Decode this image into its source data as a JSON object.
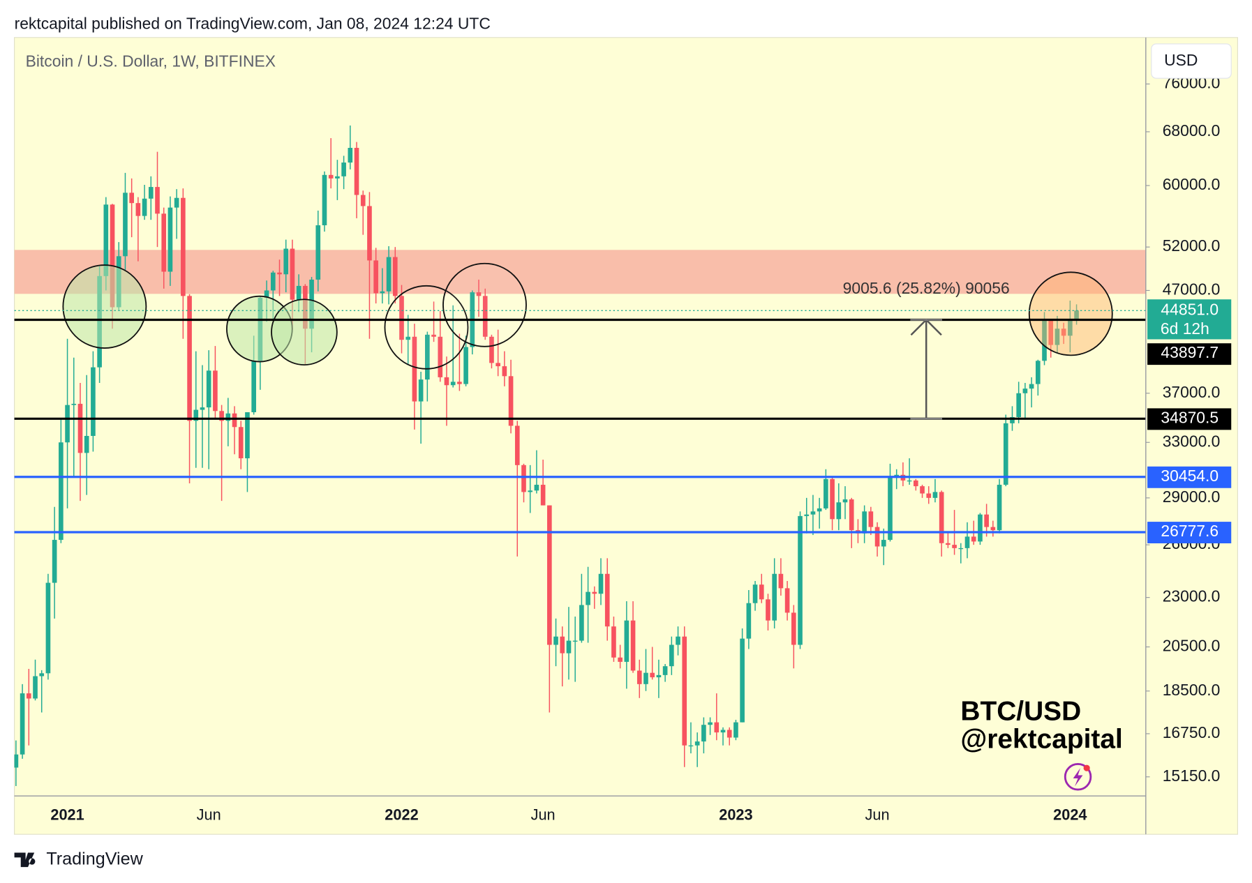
{
  "header": "rektcapital published on TradingView.com, Jan 08, 2024 12:24 UTC",
  "footer": "TradingView",
  "chart_data": {
    "type": "candlestick",
    "title": "Bitcoin / U.S. Dollar, 1W, BITFINEX",
    "currency": "USD",
    "watermark": [
      "BTC/USD",
      "@rektcapital"
    ],
    "log_scale": true,
    "up_color": "#22ab94",
    "down_color": "#f7525f",
    "categories": [
      null,
      null,
      null,
      null,
      null,
      null,
      null,
      null,
      "2021",
      null,
      null,
      null,
      null,
      null,
      null,
      null,
      null,
      null,
      null,
      null,
      null,
      null,
      null,
      null,
      null,
      null,
      null,
      null,
      null,
      null,
      "Jun",
      null,
      null,
      null,
      null,
      null,
      null,
      null,
      null,
      null,
      null,
      null,
      null,
      null,
      null,
      null,
      null,
      null,
      null,
      null,
      null,
      null,
      null,
      null,
      null,
      null,
      null,
      null,
      null,
      null,
      "2022",
      null,
      null,
      null,
      null,
      null,
      null,
      null,
      null,
      null,
      null,
      null,
      null,
      null,
      null,
      null,
      null,
      null,
      null,
      null,
      null,
      null,
      "Jun",
      null,
      null,
      null,
      null,
      null,
      null,
      null,
      null,
      null,
      null,
      null,
      null,
      null,
      null,
      null,
      null,
      null,
      null,
      null,
      null,
      null,
      null,
      null,
      null,
      null,
      null,
      null,
      null,
      null,
      "2023",
      null,
      null,
      null,
      null,
      null,
      null,
      null,
      null,
      null,
      null,
      null,
      null,
      null,
      null,
      null,
      null,
      null,
      null,
      null,
      null,
      null,
      "Jun",
      null,
      null,
      null,
      null,
      null,
      null,
      null,
      null,
      null,
      null,
      null,
      null,
      null,
      null,
      null,
      null,
      null,
      null,
      null,
      null,
      null,
      null,
      null,
      null,
      null,
      null,
      null,
      null,
      null,
      "2024",
      null
    ],
    "open": [
      15480,
      15960,
      18400,
      18180,
      19150,
      19280,
      23800,
      26300,
      33000,
      36000,
      36100,
      32200,
      33500,
      39300,
      48600,
      57400,
      45200,
      50900,
      59000,
      57600,
      55900,
      58200,
      59800,
      56200,
      49100,
      57000,
      58300,
      46400,
      34700,
      35600,
      35800,
      39000,
      35500,
      34700,
      35300,
      34200,
      31800,
      35400,
      39900,
      46200,
      47000,
      49000,
      48800,
      51800,
      46000,
      47500,
      43000,
      48200,
      54700,
      61500,
      61000,
      61300,
      63300,
      65500,
      58700,
      57200,
      50400,
      46700,
      46900,
      50800,
      46400,
      41900,
      42200,
      36300,
      38200,
      42400,
      42200,
      38400,
      37700,
      38000,
      37800,
      41200,
      46800,
      46400,
      42200,
      39700,
      39400,
      38500,
      34300,
      31300,
      29400,
      29500,
      29900,
      28500,
      20600,
      21000,
      20200,
      20800,
      20800,
      22600,
      23300,
      23200,
      24300,
      21500,
      20000,
      19800,
      21800,
      19400,
      18800,
      19300,
      19100,
      19200,
      19600,
      20600,
      21000,
      16300,
      16300,
      16450,
      17100,
      17200,
      16800,
      16900,
      16600,
      17200,
      20900,
      22700,
      23700,
      22900,
      21800,
      24300,
      23500,
      22200,
      20600,
      27800,
      27900,
      28100,
      28300,
      30300,
      27600,
      28700,
      28900,
      26900,
      26700,
      28100,
      27100,
      25900,
      26300,
      30500,
      30600,
      30200,
      30200,
      29800,
      29300,
      29000,
      29400,
      26100,
      26000,
      25800,
      25800,
      26500,
      26200,
      27900,
      27100,
      26900,
      29900,
      34500,
      35000,
      37000,
      37400,
      37800,
      39900,
      43800,
      41400,
      43000,
      42300,
      43897.7
    ],
    "high": [
      16490,
      18800,
      19480,
      19900,
      19420,
      24300,
      28400,
      34800,
      42000,
      40200,
      37900,
      38600,
      40800,
      49700,
      58400,
      57500,
      52600,
      61800,
      61000,
      58400,
      60100,
      61300,
      64900,
      57000,
      58500,
      59500,
      59600,
      46600,
      40800,
      39500,
      40900,
      41300,
      36000,
      36600,
      35900,
      34700,
      35400,
      42300,
      46400,
      48100,
      49200,
      50500,
      52900,
      52900,
      48800,
      47700,
      48500,
      56600,
      62000,
      67000,
      63700,
      64300,
      69000,
      66400,
      59300,
      59100,
      51900,
      49500,
      52100,
      52000,
      47600,
      44400,
      43500,
      38900,
      42700,
      45800,
      44800,
      40300,
      45400,
      42500,
      42300,
      47000,
      48200,
      47200,
      42400,
      42900,
      40800,
      40000,
      34700,
      31400,
      31300,
      32400,
      31700,
      28500,
      21900,
      21500,
      22500,
      22000,
      24300,
      24700,
      23600,
      25200,
      25200,
      22000,
      20600,
      22800,
      22800,
      19900,
      20400,
      20500,
      19900,
      19700,
      21000,
      21500,
      21500,
      17200,
      16800,
      17400,
      17400,
      18400,
      17000,
      17000,
      17300,
      21400,
      23400,
      23900,
      24300,
      23200,
      25200,
      25200,
      23900,
      22600,
      28100,
      29000,
      29200,
      29000,
      31000,
      30500,
      30000,
      29800,
      29000,
      27600,
      28500,
      28400,
      27400,
      27000,
      31400,
      31000,
      31500,
      31800,
      30300,
      29900,
      29800,
      30300,
      29500,
      26800,
      28200,
      26100,
      27400,
      27500,
      28000,
      28600,
      27500,
      30300,
      35200,
      35900,
      38000,
      37900,
      38400,
      40000,
      44700,
      44000,
      44300,
      43600,
      45900,
      45500
    ],
    "low": [
      14830,
      15800,
      16300,
      18100,
      17600,
      19000,
      21900,
      26100,
      28300,
      30400,
      28800,
      29200,
      32300,
      37900,
      47000,
      43000,
      44900,
      49300,
      53200,
      50300,
      55400,
      55400,
      52000,
      47200,
      47500,
      53000,
      42000,
      30000,
      31100,
      31100,
      31000,
      34800,
      28800,
      32700,
      32100,
      31000,
      29400,
      35200,
      37300,
      43700,
      43900,
      46400,
      46800,
      42900,
      44700,
      39600,
      40700,
      46900,
      53900,
      59600,
      58000,
      59500,
      62300,
      55600,
      53500,
      42000,
      45600,
      45600,
      45500,
      45600,
      40600,
      39600,
      34000,
      32900,
      36300,
      41700,
      38000,
      34300,
      37500,
      37200,
      37600,
      40500,
      44200,
      41900,
      39200,
      38500,
      37600,
      33700,
      25300,
      28700,
      28000,
      29300,
      28500,
      17600,
      19600,
      18700,
      19000,
      18900,
      20700,
      20700,
      22400,
      22600,
      20800,
      19800,
      19500,
      18600,
      19300,
      18200,
      18500,
      19000,
      18200,
      18900,
      19200,
      20100,
      15500,
      16000,
      15500,
      16000,
      16700,
      16500,
      16300,
      16300,
      16500,
      17200,
      20400,
      22300,
      22700,
      21300,
      21400,
      23100,
      21800,
      19500,
      20400,
      26700,
      26600,
      27000,
      28200,
      26900,
      26900,
      27600,
      25800,
      26100,
      26100,
      26600,
      25300,
      24800,
      26200,
      29600,
      29800,
      29900,
      29500,
      29000,
      28600,
      28700,
      25300,
      25800,
      25400,
      24900,
      25200,
      26000,
      26000,
      26500,
      26500,
      26700,
      29800,
      33900,
      34500,
      34800,
      35800,
      36800,
      39500,
      40200,
      40600,
      41500,
      40700,
      43400
    ],
    "close": [
      15960,
      18400,
      18180,
      19150,
      19280,
      23800,
      26300,
      33000,
      36000,
      36100,
      32200,
      33500,
      39300,
      48600,
      57400,
      45200,
      50900,
      59000,
      57600,
      55900,
      58200,
      59800,
      56200,
      49100,
      57000,
      58300,
      46400,
      34700,
      35600,
      35800,
      39000,
      35500,
      34700,
      35300,
      34200,
      31800,
      35400,
      39900,
      46200,
      47000,
      49000,
      48800,
      51800,
      46000,
      47500,
      43000,
      48200,
      54700,
      61500,
      61000,
      61300,
      63300,
      65500,
      58700,
      57200,
      50400,
      46700,
      46900,
      50800,
      46400,
      41900,
      42200,
      36300,
      38200,
      42400,
      42200,
      38400,
      37700,
      38000,
      37800,
      41200,
      46800,
      46400,
      42200,
      39700,
      39400,
      38500,
      34300,
      31300,
      29400,
      29500,
      29900,
      28500,
      20600,
      21000,
      20200,
      20800,
      20800,
      22600,
      23300,
      23200,
      24300,
      21500,
      20000,
      19800,
      21800,
      19400,
      18800,
      19300,
      19100,
      19200,
      19600,
      20600,
      21000,
      16300,
      16300,
      16450,
      17100,
      17200,
      16800,
      16900,
      16600,
      17200,
      20900,
      22700,
      23700,
      22900,
      21800,
      24300,
      23500,
      22200,
      20600,
      27800,
      27900,
      28100,
      28300,
      30300,
      27600,
      28700,
      28900,
      26900,
      26700,
      28100,
      27100,
      25900,
      26300,
      30500,
      30600,
      30200,
      30200,
      29800,
      29300,
      29000,
      29400,
      26100,
      26000,
      25800,
      25800,
      26500,
      26200,
      27900,
      27100,
      26900,
      29900,
      34500,
      35000,
      37000,
      37400,
      37800,
      39900,
      43800,
      41400,
      43000,
      42300,
      43897.7,
      44851
    ],
    "ylim": [
      14490,
      84680
    ],
    "yticks": [
      {
        "value": 15150,
        "label": "15150.0"
      },
      {
        "value": 16750,
        "label": "16750.0"
      },
      {
        "value": 18500,
        "label": "18500.0"
      },
      {
        "value": 20500,
        "label": "20500.0"
      },
      {
        "value": 23000,
        "label": "23000.0"
      },
      {
        "value": 26000,
        "label": "26000.0"
      },
      {
        "value": 29000,
        "label": "29000.0"
      },
      {
        "value": 33000,
        "label": "33000.0"
      },
      {
        "value": 37000,
        "label": "37000.0"
      },
      {
        "value": 47000,
        "label": "47000.0"
      },
      {
        "value": 52000,
        "label": "52000.0"
      },
      {
        "value": 60000,
        "label": "60000.0"
      },
      {
        "value": 68000,
        "label": "68000.0"
      },
      {
        "value": 76000,
        "label": "76000.0"
      }
    ],
    "zones": [
      {
        "from": 46630,
        "to": 51650,
        "color": "#f9bba8"
      }
    ],
    "levels": [
      {
        "value": 43897.7,
        "label": "43897.7",
        "color": "#000000"
      },
      {
        "value": 34870.5,
        "label": "34870.5",
        "color": "#000000"
      },
      {
        "value": 30454,
        "label": "30454.0",
        "color": "#2962ff"
      },
      {
        "value": 26777.6,
        "label": "26777.6",
        "color": "#2962ff"
      }
    ],
    "last": {
      "value": 44851,
      "label": "44851.0",
      "countdown": "6d 12h",
      "color": "#22ab94"
    },
    "measure": {
      "text": "9005.6 (25.82%) 90056",
      "color": "#555555"
    }
  }
}
